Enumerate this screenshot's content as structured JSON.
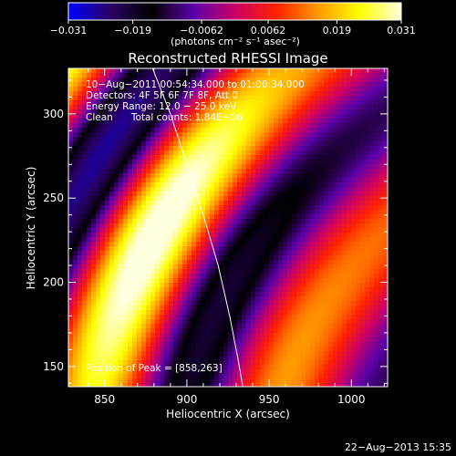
{
  "colorbar": {
    "ticks": [
      "−0.031",
      "−0.019",
      "−0.0062",
      "0.0062",
      "0.019",
      "0.031"
    ],
    "tick_values": [
      -0.031,
      -0.019,
      -0.0062,
      0.0062,
      0.019,
      0.031
    ],
    "range": [
      -0.031,
      0.031
    ],
    "units": "(photons cm⁻² s⁻¹ asec⁻²)",
    "colors": [
      "#0000ff",
      "#2a0066",
      "#000000",
      "#5a00aa",
      "#cc0066",
      "#ff2200",
      "#ff9900",
      "#ffff00",
      "#ffffdd"
    ]
  },
  "chart_data": {
    "type": "heatmap",
    "title": "Reconstructed RHESSI Image",
    "xlabel": "Heliocentric X (arcsec)",
    "ylabel": "Heliocentric Y (arcsec)",
    "xlim": [
      828,
      1022
    ],
    "ylim": [
      138,
      327
    ],
    "x_ticks": [
      850,
      900,
      950,
      1000
    ],
    "y_ticks": [
      150,
      200,
      250,
      300
    ],
    "annotations": [
      "10−Aug−2011 00:54:34.000 to 01:00:34.000",
      "Detectors: 4F 5F 6F 7F 8F, Att 0",
      "Energy Range: 12.0 − 25.0 keV",
      "Clean      Total counts: 1.84E+06",
      "Position of Peak = [858,263]"
    ],
    "peak": [
      858,
      263
    ],
    "limb_curve": [
      [
        878,
        330
      ],
      [
        890,
        300
      ],
      [
        900,
        270
      ],
      [
        910,
        240
      ],
      [
        919,
        210
      ],
      [
        926,
        180
      ],
      [
        931,
        155
      ],
      [
        934,
        138
      ]
    ]
  },
  "footer": {
    "timestamp": "22−Aug−2013 15:35"
  }
}
